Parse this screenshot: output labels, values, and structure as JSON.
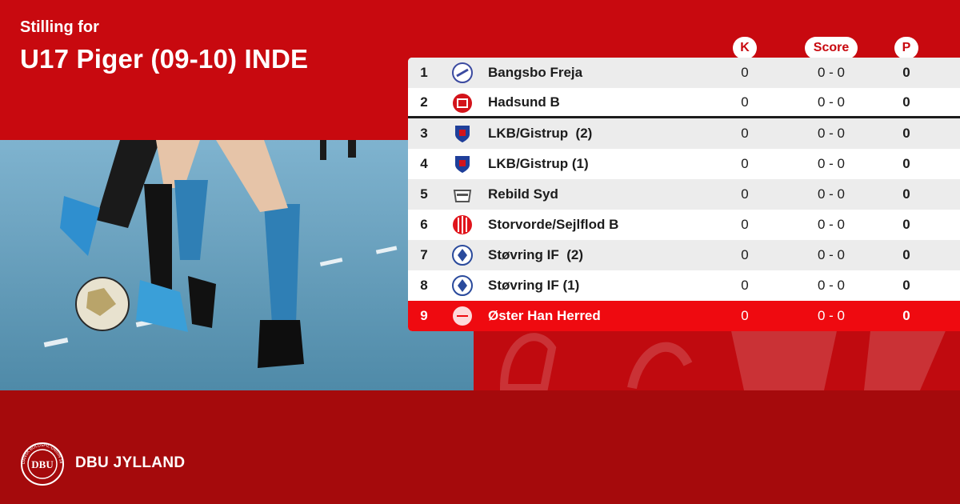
{
  "header": {
    "subtitle": "Stilling for",
    "title": "U17 Piger (09-10) INDE"
  },
  "columns": {
    "k": "K",
    "score": "Score",
    "p": "P"
  },
  "rows": [
    {
      "pos": "1",
      "team": "Bangsbo Freja",
      "k": "0",
      "score": "0 - 0",
      "p": "0",
      "crest_color": "#3b4aa0"
    },
    {
      "pos": "2",
      "team": "Hadsund B",
      "k": "0",
      "score": "0 - 0",
      "p": "0",
      "crest_color": "#d3141b"
    },
    {
      "pos": "3",
      "team": "LKB/Gistrup  (2)",
      "k": "0",
      "score": "0 - 0",
      "p": "0",
      "crest_color": "#1f3f9a"
    },
    {
      "pos": "4",
      "team": "LKB/Gistrup (1)",
      "k": "0",
      "score": "0 - 0",
      "p": "0",
      "crest_color": "#1f3f9a"
    },
    {
      "pos": "5",
      "team": "Rebild Syd",
      "k": "0",
      "score": "0 - 0",
      "p": "0",
      "crest_color": "#555555"
    },
    {
      "pos": "6",
      "team": "Storvorde/Sejlflod B",
      "k": "0",
      "score": "0 - 0",
      "p": "0",
      "crest_color": "#e0141b"
    },
    {
      "pos": "7",
      "team": "Støvring IF  (2)",
      "k": "0",
      "score": "0 - 0",
      "p": "0",
      "crest_color": "#2a4a9c"
    },
    {
      "pos": "8",
      "team": "Støvring IF (1)",
      "k": "0",
      "score": "0 - 0",
      "p": "0",
      "crest_color": "#2a4a9c"
    },
    {
      "pos": "9",
      "team": "Øster Han Herred",
      "k": "0",
      "score": "0 - 0",
      "p": "0",
      "crest_color": "#ffffff"
    }
  ],
  "footer": {
    "brand": "DBU JYLLAND",
    "logo_text": "DBU",
    "logo_ring_text": "DANSK BOLDSPIL-UNION 1889"
  },
  "colors": {
    "accent": "#c8090f",
    "highlight_row": "#ef0a10",
    "footer": "#a50a0c"
  }
}
